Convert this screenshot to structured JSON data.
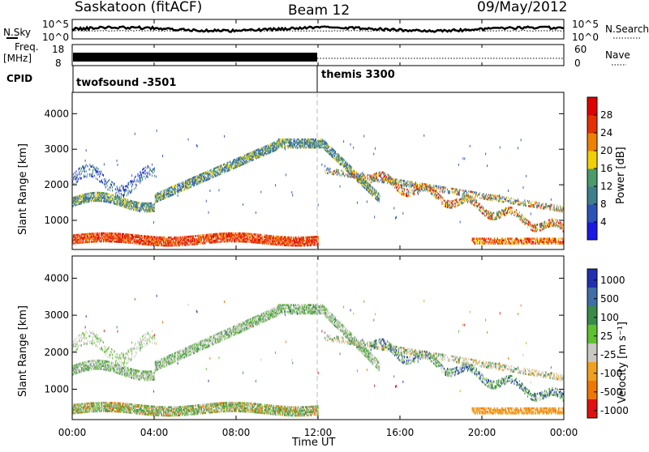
{
  "header": {
    "station": "Saskatoon (fitACF)",
    "beam": "Beam 12",
    "date": "09/May/2012"
  },
  "labels": {
    "nsky": "N.Sky",
    "nsky_top": "10^5",
    "nsky_bottom": "10^0",
    "freq_line1": "Freq.",
    "freq_line2": "[MHz]",
    "freq_top": "18",
    "freq_bottom": "8",
    "cpid": "CPID",
    "nsearch": "N.Search",
    "nsearch_top": "10^5",
    "nsearch_bottom": "10^0",
    "nave": "Nave",
    "nave_top": "60",
    "nave_bottom": "0",
    "cpid_1": "twofsound -3501",
    "cpid_2": "themis 3300",
    "ylabel": "Slant Range [km]",
    "xlabel": "Time UT",
    "power_label": "Power [dB]",
    "velocity_label": "Velocity [m s⁻¹]"
  },
  "chart_data": [
    {
      "type": "heatmap",
      "name": "power",
      "x": {
        "label": "Time UT",
        "range": [
          "00:00",
          "24:00"
        ],
        "ticks": [
          "00:00",
          "04:00",
          "08:00",
          "12:00",
          "16:00",
          "20:00",
          "00:00"
        ]
      },
      "y": {
        "label": "Slant Range [km]",
        "range": [
          180,
          4600
        ],
        "ticks": [
          1000,
          2000,
          3000,
          4000
        ]
      },
      "colorbar": {
        "label": "Power [dB]",
        "ticks": [
          "4",
          "8",
          "12",
          "16",
          "20",
          "24",
          "28"
        ],
        "colors": [
          "#1a1ae6",
          "#2a55b8",
          "#3d7f8a",
          "#4a9a6a",
          "#f0d000",
          "#f08000",
          "#e63000",
          "#e00000"
        ]
      }
    },
    {
      "type": "heatmap",
      "name": "velocity",
      "x": {
        "label": "Time UT",
        "range": [
          "00:00",
          "24:00"
        ],
        "ticks": [
          "00:00",
          "04:00",
          "08:00",
          "12:00",
          "16:00",
          "20:00",
          "00:00"
        ]
      },
      "y": {
        "label": "Slant Range [km]",
        "range": [
          180,
          4600
        ],
        "ticks": [
          1000,
          2000,
          3000,
          4000
        ]
      },
      "colorbar": {
        "label": "Velocity [m s⁻¹]",
        "ticks": [
          "1000",
          "500",
          "100",
          "25",
          "-25",
          "-100",
          "-500",
          "-1000"
        ],
        "colors": [
          "#2030b0",
          "#3f6fa8",
          "#3a8a4a",
          "#5fc030",
          "#c8c8c0",
          "#f0a020",
          "#f07800",
          "#e01010"
        ]
      }
    }
  ]
}
